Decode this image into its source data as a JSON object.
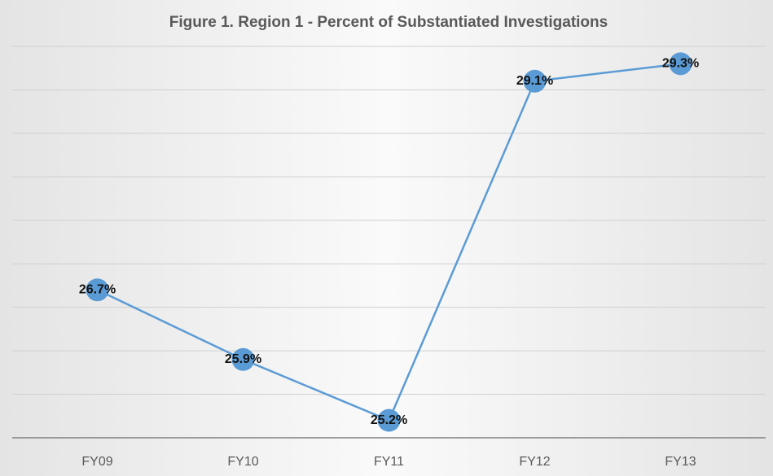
{
  "chart_data": {
    "type": "line",
    "title": "Figure 1. Region 1 - Percent of Substantiated Investigations",
    "categories": [
      "FY09",
      "FY10",
      "FY11",
      "FY12",
      "FY13"
    ],
    "series": [
      {
        "name": "Region 1",
        "color": "#5b9bd5",
        "values": [
          26.7,
          25.9,
          25.2,
          29.1,
          29.3
        ],
        "value_labels": [
          "26.7%",
          "25.9%",
          "25.2%",
          "29.1%",
          "29.3%"
        ]
      }
    ],
    "ylim": [
      25,
      29.5
    ],
    "yticks": [
      25,
      25.5,
      26,
      26.5,
      27,
      27.5,
      28,
      28.5,
      29,
      29.5
    ],
    "grid": true
  }
}
